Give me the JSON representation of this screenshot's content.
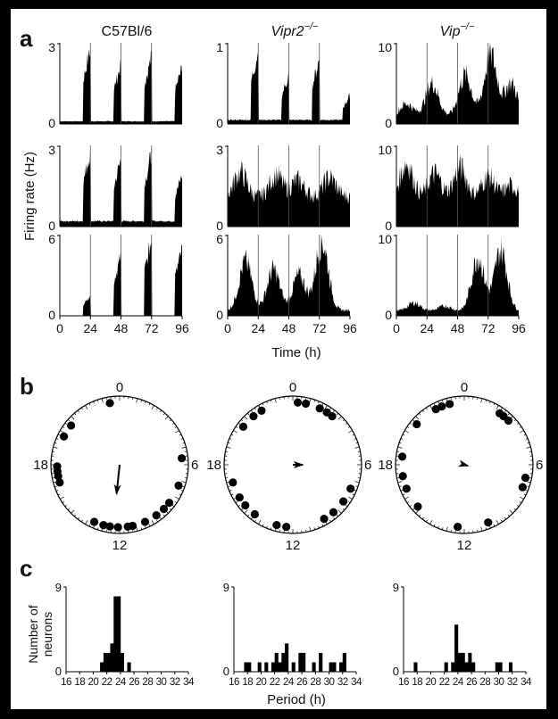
{
  "figure": {
    "panel_labels": [
      "a",
      "b",
      "c"
    ],
    "column_titles": [
      {
        "text": "C57Bl/6",
        "italic": false
      },
      {
        "text": "Vipr2",
        "sup": "−/−",
        "italic": true
      },
      {
        "text": "Vip",
        "sup": "−/−",
        "italic": true
      }
    ],
    "a": {
      "ylabel": "Firing rate (Hz)",
      "xlabel": "Time (h)",
      "x_ticks": [
        "0",
        "24",
        "48",
        "72",
        "96"
      ],
      "y_ticks": [
        [
          [
            "0",
            "3"
          ],
          [
            "0",
            "3"
          ],
          [
            "0",
            "6"
          ]
        ],
        [
          [
            "0",
            "1"
          ],
          [
            "0",
            "3"
          ],
          [
            "0",
            "6"
          ]
        ],
        [
          [
            "0",
            "10"
          ],
          [
            "0",
            "10"
          ],
          [
            "0",
            "10"
          ]
        ]
      ]
    },
    "b": {
      "dial_labels": [
        "0",
        "6",
        "12",
        "18"
      ]
    },
    "c": {
      "ylabel_line1": "Number of",
      "ylabel_line2": "neurons",
      "y_ticks": [
        "0",
        "9"
      ],
      "xlabel": "Period (h)",
      "x_ticks": [
        "16",
        "18",
        "20",
        "22",
        "24",
        "26",
        "28",
        "30",
        "32",
        "34"
      ]
    }
  },
  "chart_data": [
    {
      "type": "area",
      "panel": "a",
      "xlabel": "Time (h)",
      "ylabel": "Firing rate (Hz)",
      "xlim": [
        0,
        96
      ],
      "columns": [
        {
          "title": "C57Bl/6",
          "rows": [
            {
              "ylim": [
                0,
                3
              ],
              "profile": "pulse",
              "peaks": [
                [
                  24,
                  2.8
                ],
                [
                  48,
                  2.2
                ],
                [
                  72,
                  2.5
                ],
                [
                  96,
                  2.1
                ]
              ],
              "baseline": 0.1
            },
            {
              "ylim": [
                0,
                3
              ],
              "profile": "pulse",
              "peaks": [
                [
                  24,
                  2.8
                ],
                [
                  48,
                  2.5
                ],
                [
                  72,
                  2.7
                ],
                [
                  96,
                  1.9
                ]
              ],
              "baseline": 0.2
            },
            {
              "ylim": [
                0,
                6
              ],
              "profile": "pulse",
              "peaks": [
                [
                  24,
                  1.4
                ],
                [
                  48,
                  4.4
                ],
                [
                  72,
                  5.6
                ],
                [
                  96,
                  4.9
                ]
              ],
              "baseline": 0.0
            }
          ]
        },
        {
          "title": "Vipr2−/−",
          "rows": [
            {
              "ylim": [
                0,
                1
              ],
              "profile": "pulse",
              "peaks": [
                [
                  24,
                  0.9
                ],
                [
                  48,
                  0.6
                ],
                [
                  72,
                  0.8
                ],
                [
                  96,
                  0.35
                ]
              ],
              "baseline": 0.05
            },
            {
              "ylim": [
                0,
                3
              ],
              "profile": "noisy",
              "peaks": [
                [
                  10,
                  2.0
                ],
                [
                  38,
                  1.9
                ],
                [
                  55,
                  1.7
                ],
                [
                  80,
                  1.8
                ]
              ],
              "baseline": 1.1
            },
            {
              "ylim": [
                0,
                6
              ],
              "profile": "noisy",
              "peaks": [
                [
                  14,
                  4.0
                ],
                [
                  36,
                  3.4
                ],
                [
                  56,
                  3.0
                ],
                [
                  74,
                  5.5
                ]
              ],
              "baseline": 0.4
            }
          ]
        },
        {
          "title": "Vip−/−",
          "rows": [
            {
              "ylim": [
                0,
                10
              ],
              "profile": "noisy",
              "peaks": [
                [
                  8,
                  2.5
                ],
                [
                  28,
                  5.0
                ],
                [
                  54,
                  6.0
                ],
                [
                  74,
                  8.5
                ],
                [
                  90,
                  5.0
                ]
              ],
              "baseline": 1.0
            },
            {
              "ylim": [
                0,
                10
              ],
              "profile": "noisy",
              "peaks": [
                [
                  8,
                  7.8
                ],
                [
                  30,
                  6.5
                ],
                [
                  50,
                  7.2
                ],
                [
                  72,
                  6.2
                ],
                [
                  90,
                  5.0
                ]
              ],
              "baseline": 3.6
            },
            {
              "ylim": [
                0,
                10
              ],
              "profile": "noisy",
              "peaks": [
                [
                  14,
                  1.6
                ],
                [
                  38,
                  1.2
                ],
                [
                  64,
                  7.2
                ],
                [
                  82,
                  8.0
                ]
              ],
              "baseline": 0.6
            }
          ]
        }
      ]
    },
    {
      "type": "scatter",
      "panel": "b",
      "coordinate": "circular, 24 h clock, 0 at top, 6 at right",
      "dials": [
        {
          "title": "C57Bl/6",
          "phases_h": [
            23.4,
            20.6,
            19.8,
            17.9,
            17.6,
            17.3,
            16.9,
            13.6,
            13.0,
            12.6,
            12.1,
            11.5,
            11.2,
            10.4,
            9.6,
            9.0,
            8.5,
            7.3,
            5.6
          ],
          "vector": {
            "phase_h": 12.4,
            "length": 0.42
          }
        },
        {
          "title": "Vipr2−/−",
          "phases_h": [
            0.3,
            0.8,
            1.7,
            2.2,
            2.6,
            22.0,
            21.4,
            20.5,
            16.9,
            15.9,
            15.3,
            14.5,
            13.0,
            12.4,
            10.0,
            9.3,
            8.4,
            7.5
          ],
          "vector": {
            "phase_h": 6.0,
            "length": 0.14
          }
        },
        {
          "title": "Vip−/−",
          "phases_h": [
            23.1,
            22.6,
            22.2,
            20.7,
            18.5,
            17.3,
            16.5,
            15.2,
            12.4,
            10.5,
            7.4,
            6.8,
            3.0,
            2.6,
            2.3
          ],
          "vector": {
            "phase_h": 7.0,
            "length": 0.05
          }
        }
      ]
    },
    {
      "type": "bar",
      "panel": "c",
      "xlabel": "Period (h)",
      "ylabel": "Number of neurons",
      "xlim": [
        16,
        34
      ],
      "ylim": [
        0,
        9
      ],
      "bin_width_h": 0.5,
      "histograms": [
        {
          "title": "C57Bl/6",
          "bins": [
            [
              21.0,
              1
            ],
            [
              21.5,
              2
            ],
            [
              22.0,
              2
            ],
            [
              22.5,
              3
            ],
            [
              23.0,
              8
            ],
            [
              23.5,
              8
            ],
            [
              24.0,
              2
            ],
            [
              25.0,
              1
            ]
          ]
        },
        {
          "title": "Vipr2−/−",
          "bins": [
            [
              17.5,
              1
            ],
            [
              18.0,
              1
            ],
            [
              19.5,
              1
            ],
            [
              20.5,
              1
            ],
            [
              21.5,
              1
            ],
            [
              22.0,
              2
            ],
            [
              22.5,
              1
            ],
            [
              23.0,
              2
            ],
            [
              23.5,
              3
            ],
            [
              24.5,
              1
            ],
            [
              25.5,
              2
            ],
            [
              26.0,
              2
            ],
            [
              27.5,
              1
            ],
            [
              28.5,
              2
            ],
            [
              30.0,
              1
            ],
            [
              30.5,
              1
            ],
            [
              31.5,
              1
            ],
            [
              32.0,
              2
            ]
          ]
        },
        {
          "title": "Vip−/−",
          "bins": [
            [
              17.5,
              1
            ],
            [
              22.0,
              1
            ],
            [
              23.0,
              1
            ],
            [
              23.5,
              5
            ],
            [
              24.0,
              2
            ],
            [
              24.5,
              2
            ],
            [
              25.0,
              1
            ],
            [
              25.5,
              2
            ],
            [
              26.0,
              1
            ],
            [
              29.5,
              1
            ],
            [
              30.0,
              1
            ],
            [
              31.5,
              1
            ]
          ]
        }
      ]
    }
  ]
}
